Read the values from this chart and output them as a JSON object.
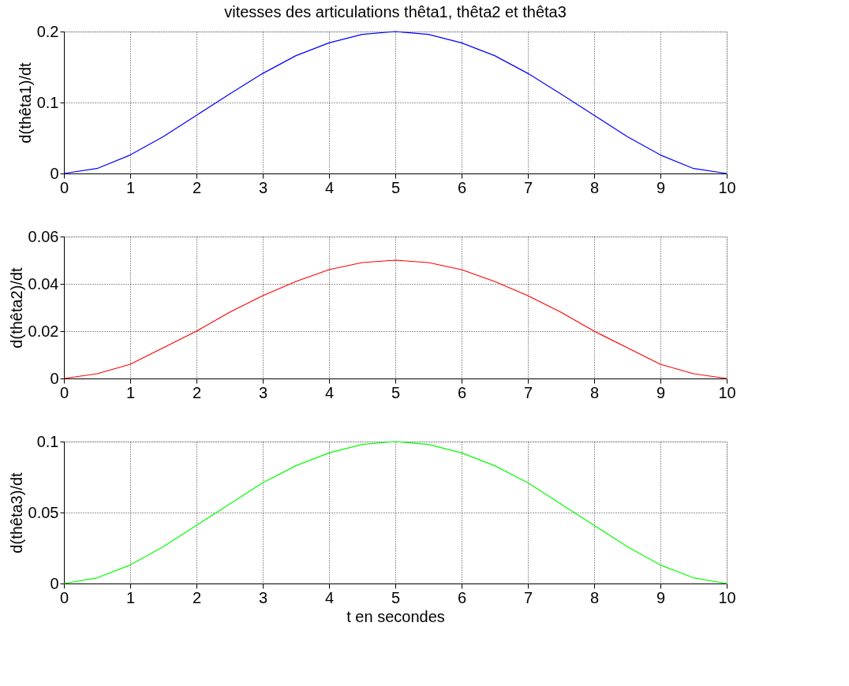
{
  "chart_data": [
    {
      "type": "line",
      "title": "vitesses des articulations thêta1, thêta2 et thêta3",
      "ylabel": "d(thêta1)/dt",
      "x": [
        0,
        0.5,
        1,
        1.5,
        2,
        2.5,
        3,
        3.5,
        4,
        4.5,
        5,
        5.5,
        6,
        6.5,
        7,
        7.5,
        8,
        8.5,
        9,
        9.5,
        10
      ],
      "series": [
        {
          "color": "#0000ff",
          "values": [
            0,
            0.007,
            0.026,
            0.052,
            0.082,
            0.112,
            0.141,
            0.166,
            0.184,
            0.196,
            0.2,
            0.196,
            0.184,
            0.166,
            0.141,
            0.112,
            0.082,
            0.052,
            0.026,
            0.007,
            0
          ]
        }
      ],
      "xlim": [
        0,
        10
      ],
      "ylim": [
        0,
        0.2
      ],
      "xticks": [
        0,
        1,
        2,
        3,
        4,
        5,
        6,
        7,
        8,
        9,
        10
      ],
      "yticks": [
        0,
        0.1,
        0.2
      ],
      "grid": true
    },
    {
      "type": "line",
      "ylabel": "d(thêta2)/dt",
      "x": [
        0,
        0.5,
        1,
        1.5,
        2,
        2.5,
        3,
        3.5,
        4,
        4.5,
        5,
        5.5,
        6,
        6.5,
        7,
        7.5,
        8,
        8.5,
        9,
        9.5,
        10
      ],
      "series": [
        {
          "color": "#ff0000",
          "values": [
            0,
            0.002,
            0.006,
            0.013,
            0.02,
            0.028,
            0.035,
            0.041,
            0.046,
            0.049,
            0.05,
            0.049,
            0.046,
            0.041,
            0.035,
            0.028,
            0.02,
            0.013,
            0.006,
            0.002,
            0
          ]
        }
      ],
      "xlim": [
        0,
        10
      ],
      "ylim": [
        0,
        0.06
      ],
      "xticks": [
        0,
        1,
        2,
        3,
        4,
        5,
        6,
        7,
        8,
        9,
        10
      ],
      "yticks": [
        0,
        0.02,
        0.04,
        0.06
      ],
      "grid": true
    },
    {
      "type": "line",
      "ylabel": "d(thêta3)/dt",
      "xlabel": "t en secondes",
      "x": [
        0,
        0.5,
        1,
        1.5,
        2,
        2.5,
        3,
        3.5,
        4,
        4.5,
        5,
        5.5,
        6,
        6.5,
        7,
        7.5,
        8,
        8.5,
        9,
        9.5,
        10
      ],
      "series": [
        {
          "color": "#00ff00",
          "values": [
            0,
            0.004,
            0.013,
            0.026,
            0.041,
            0.056,
            0.071,
            0.083,
            0.092,
            0.098,
            0.1,
            0.098,
            0.092,
            0.083,
            0.071,
            0.056,
            0.041,
            0.026,
            0.013,
            0.004,
            0
          ]
        }
      ],
      "xlim": [
        0,
        10
      ],
      "ylim": [
        0,
        0.1
      ],
      "xticks": [
        0,
        1,
        2,
        3,
        4,
        5,
        6,
        7,
        8,
        9,
        10
      ],
      "yticks": [
        0,
        0.05,
        0.1
      ],
      "grid": true
    }
  ]
}
